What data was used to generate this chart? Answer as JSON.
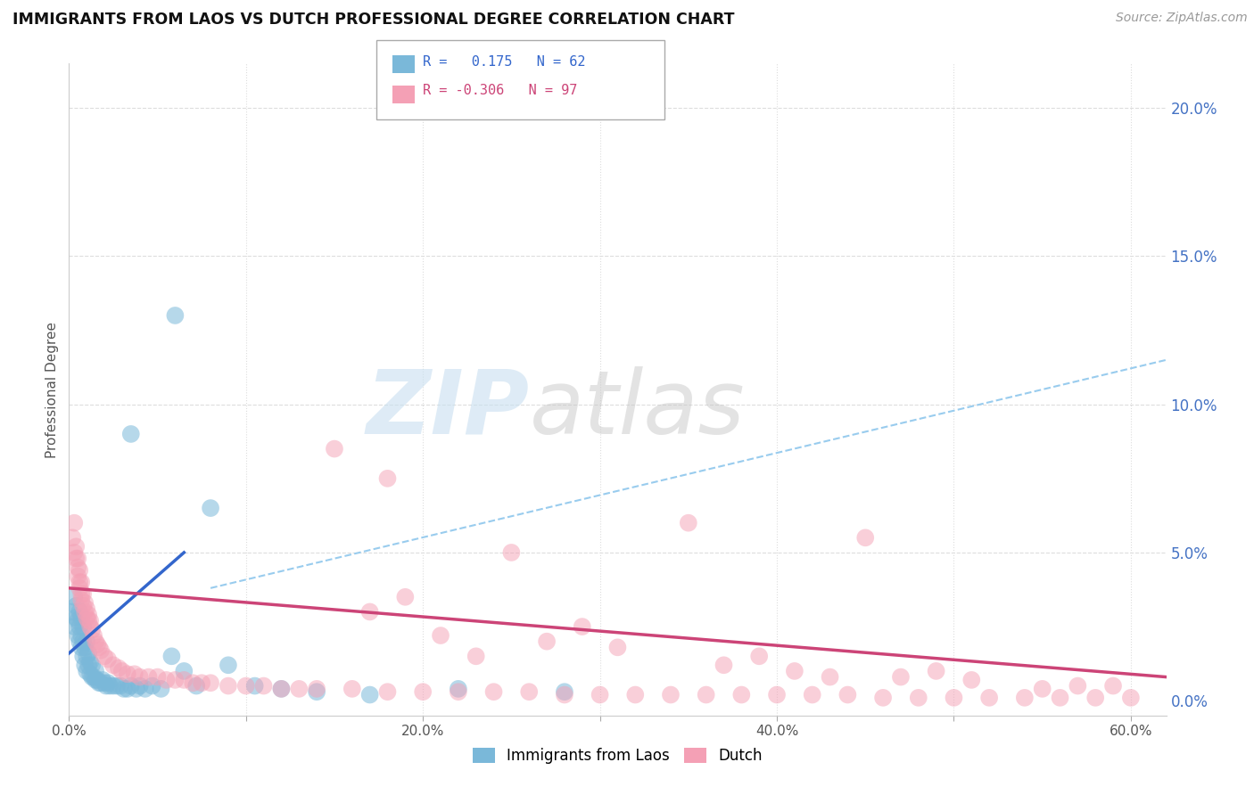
{
  "title": "IMMIGRANTS FROM LAOS VS DUTCH PROFESSIONAL DEGREE CORRELATION CHART",
  "source": "Source: ZipAtlas.com",
  "ylabel": "Professional Degree",
  "xlim": [
    0.0,
    0.62
  ],
  "ylim": [
    -0.005,
    0.215
  ],
  "xticks": [
    0.0,
    0.1,
    0.2,
    0.3,
    0.4,
    0.5,
    0.6
  ],
  "xticklabels": [
    "0.0%",
    "",
    "20.0%",
    "",
    "40.0%",
    "",
    "60.0%"
  ],
  "yticks_right": [
    0.0,
    0.05,
    0.1,
    0.15,
    0.2
  ],
  "yticklabels_right": [
    "0.0%",
    "5.0%",
    "10.0%",
    "15.0%",
    "20.0%"
  ],
  "color_blue": "#7ab8d9",
  "color_pink": "#f4a0b5",
  "color_trend_blue": "#3366cc",
  "color_trend_pink": "#cc4477",
  "color_trend_gray": "#99ccee",
  "watermark_zip": "ZIP",
  "watermark_atlas": "atlas",
  "background_color": "#ffffff",
  "grid_color": "#dddddd",
  "laos_x": [
    0.002,
    0.003,
    0.003,
    0.004,
    0.004,
    0.005,
    0.005,
    0.006,
    0.006,
    0.006,
    0.007,
    0.007,
    0.007,
    0.008,
    0.008,
    0.008,
    0.009,
    0.009,
    0.01,
    0.01,
    0.01,
    0.011,
    0.011,
    0.012,
    0.012,
    0.013,
    0.013,
    0.014,
    0.015,
    0.015,
    0.016,
    0.017,
    0.018,
    0.019,
    0.02,
    0.021,
    0.022,
    0.023,
    0.025,
    0.027,
    0.029,
    0.031,
    0.033,
    0.035,
    0.038,
    0.04,
    0.043,
    0.047,
    0.052,
    0.058,
    0.065,
    0.072,
    0.08,
    0.09,
    0.105,
    0.12,
    0.14,
    0.17,
    0.22,
    0.28,
    0.06,
    0.035
  ],
  "laos_y": [
    0.03,
    0.025,
    0.035,
    0.028,
    0.032,
    0.022,
    0.027,
    0.02,
    0.025,
    0.03,
    0.018,
    0.022,
    0.028,
    0.015,
    0.02,
    0.025,
    0.012,
    0.018,
    0.01,
    0.015,
    0.02,
    0.012,
    0.016,
    0.009,
    0.013,
    0.008,
    0.012,
    0.008,
    0.007,
    0.01,
    0.007,
    0.006,
    0.006,
    0.007,
    0.006,
    0.005,
    0.006,
    0.005,
    0.005,
    0.005,
    0.005,
    0.004,
    0.004,
    0.005,
    0.004,
    0.005,
    0.004,
    0.005,
    0.004,
    0.015,
    0.01,
    0.005,
    0.065,
    0.012,
    0.005,
    0.004,
    0.003,
    0.002,
    0.004,
    0.003,
    0.13,
    0.09
  ],
  "dutch_x": [
    0.002,
    0.003,
    0.003,
    0.004,
    0.004,
    0.005,
    0.005,
    0.005,
    0.006,
    0.006,
    0.006,
    0.007,
    0.007,
    0.007,
    0.008,
    0.008,
    0.009,
    0.009,
    0.01,
    0.01,
    0.011,
    0.011,
    0.012,
    0.012,
    0.013,
    0.014,
    0.015,
    0.016,
    0.017,
    0.018,
    0.02,
    0.022,
    0.025,
    0.028,
    0.03,
    0.033,
    0.037,
    0.04,
    0.045,
    0.05,
    0.055,
    0.06,
    0.065,
    0.07,
    0.075,
    0.08,
    0.09,
    0.1,
    0.11,
    0.12,
    0.13,
    0.14,
    0.16,
    0.18,
    0.2,
    0.22,
    0.24,
    0.26,
    0.28,
    0.3,
    0.32,
    0.34,
    0.36,
    0.38,
    0.4,
    0.42,
    0.44,
    0.46,
    0.48,
    0.5,
    0.52,
    0.54,
    0.56,
    0.58,
    0.6,
    0.15,
    0.25,
    0.35,
    0.45,
    0.55,
    0.19,
    0.29,
    0.39,
    0.49,
    0.59,
    0.17,
    0.27,
    0.37,
    0.47,
    0.57,
    0.21,
    0.31,
    0.41,
    0.51,
    0.23,
    0.43,
    0.18
  ],
  "dutch_y": [
    0.055,
    0.06,
    0.05,
    0.048,
    0.052,
    0.045,
    0.042,
    0.048,
    0.04,
    0.044,
    0.038,
    0.036,
    0.04,
    0.034,
    0.032,
    0.036,
    0.03,
    0.033,
    0.028,
    0.031,
    0.027,
    0.029,
    0.025,
    0.027,
    0.024,
    0.022,
    0.02,
    0.019,
    0.018,
    0.017,
    0.015,
    0.014,
    0.012,
    0.011,
    0.01,
    0.009,
    0.009,
    0.008,
    0.008,
    0.008,
    0.007,
    0.007,
    0.007,
    0.006,
    0.006,
    0.006,
    0.005,
    0.005,
    0.005,
    0.004,
    0.004,
    0.004,
    0.004,
    0.003,
    0.003,
    0.003,
    0.003,
    0.003,
    0.002,
    0.002,
    0.002,
    0.002,
    0.002,
    0.002,
    0.002,
    0.002,
    0.002,
    0.001,
    0.001,
    0.001,
    0.001,
    0.001,
    0.001,
    0.001,
    0.001,
    0.085,
    0.05,
    0.06,
    0.055,
    0.004,
    0.035,
    0.025,
    0.015,
    0.01,
    0.005,
    0.03,
    0.02,
    0.012,
    0.008,
    0.005,
    0.022,
    0.018,
    0.01,
    0.007,
    0.015,
    0.008,
    0.075
  ],
  "blue_trend_x": [
    0.0,
    0.065
  ],
  "blue_trend_y": [
    0.016,
    0.05
  ],
  "pink_trend_x": [
    0.0,
    0.62
  ],
  "pink_trend_y": [
    0.038,
    0.008
  ],
  "gray_trend_x": [
    0.08,
    0.62
  ],
  "gray_trend_y": [
    0.038,
    0.115
  ]
}
